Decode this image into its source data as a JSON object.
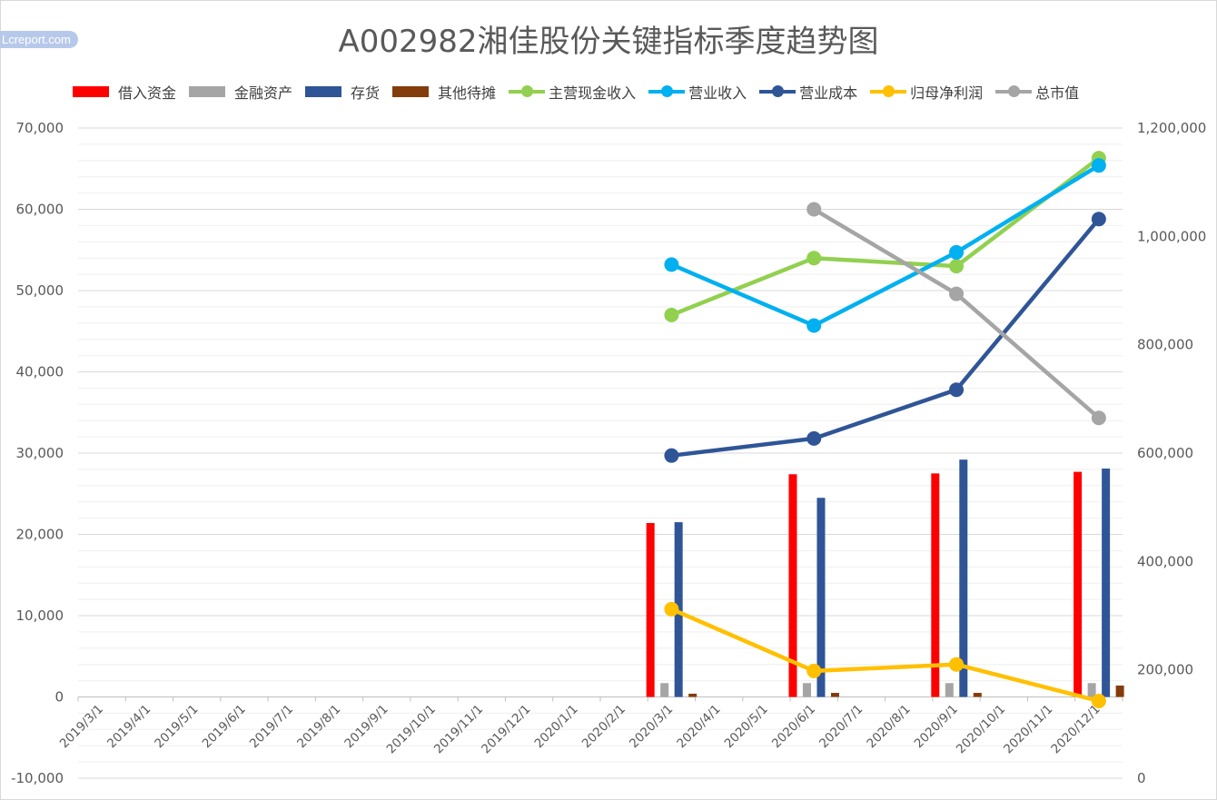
{
  "watermark": "Lcreport.com",
  "chart_data": {
    "type": "bar+line",
    "title": "A002982湘佳股份关键指标季度趋势图",
    "legend_position": "top",
    "grid": true,
    "categories": [
      "2019/3/1",
      "2019/4/1",
      "2019/5/1",
      "2019/6/1",
      "2019/7/1",
      "2019/8/1",
      "2019/9/1",
      "2019/10/1",
      "2019/11/1",
      "2019/12/1",
      "2020/1/1",
      "2020/2/1",
      "2020/3/1",
      "2020/4/1",
      "2020/5/1",
      "2020/6/1",
      "2020/7/1",
      "2020/8/1",
      "2020/9/1",
      "2020/10/1",
      "2020/11/1",
      "2020/12/1"
    ],
    "y_left": {
      "min": -10000,
      "max": 70000,
      "step": 10000,
      "tick_labels": [
        "-10,000",
        "0",
        "10,000",
        "20,000",
        "30,000",
        "40,000",
        "50,000",
        "60,000",
        "70,000"
      ]
    },
    "y_right": {
      "min": 0,
      "max": 1200000,
      "step": 200000,
      "tick_labels": [
        "0",
        "200,000",
        "400,000",
        "600,000",
        "800,000",
        "1,000,000",
        "1,200,000"
      ]
    },
    "series": [
      {
        "name": "借入资金",
        "kind": "bar",
        "axis": "left",
        "color": "#ff0000",
        "values": [
          null,
          null,
          null,
          null,
          null,
          null,
          null,
          null,
          null,
          null,
          null,
          null,
          21400,
          null,
          null,
          27400,
          null,
          null,
          27500,
          null,
          null,
          27700
        ]
      },
      {
        "name": "金融资产",
        "kind": "bar",
        "axis": "left",
        "color": "#a5a5a5",
        "values": [
          null,
          null,
          null,
          null,
          null,
          null,
          null,
          null,
          null,
          null,
          null,
          null,
          1700,
          null,
          null,
          1700,
          null,
          null,
          1700,
          null,
          null,
          1700
        ]
      },
      {
        "name": "存货",
        "kind": "bar",
        "axis": "left",
        "color": "#2f5597",
        "values": [
          null,
          null,
          null,
          null,
          null,
          null,
          null,
          null,
          null,
          null,
          null,
          null,
          21500,
          null,
          null,
          24500,
          null,
          null,
          29200,
          null,
          null,
          28100
        ]
      },
      {
        "name": "其他待摊",
        "kind": "bar",
        "axis": "left",
        "color": "#843c0c",
        "values": [
          null,
          null,
          null,
          null,
          null,
          null,
          null,
          null,
          null,
          null,
          null,
          null,
          400,
          null,
          null,
          500,
          null,
          null,
          500,
          null,
          null,
          1400
        ]
      },
      {
        "name": "主营现金收入",
        "kind": "line",
        "axis": "left",
        "color": "#92d050",
        "values": [
          null,
          null,
          null,
          null,
          null,
          null,
          null,
          null,
          null,
          null,
          null,
          null,
          47000,
          null,
          null,
          54000,
          null,
          null,
          53000,
          null,
          null,
          66300
        ]
      },
      {
        "name": "营业收入",
        "kind": "line",
        "axis": "left",
        "color": "#00b0f0",
        "values": [
          null,
          null,
          null,
          null,
          null,
          null,
          null,
          null,
          null,
          null,
          null,
          null,
          53200,
          null,
          null,
          45700,
          null,
          null,
          54700,
          null,
          null,
          65400
        ]
      },
      {
        "name": "营业成本",
        "kind": "line",
        "axis": "left",
        "color": "#2f5597",
        "values": [
          null,
          null,
          null,
          null,
          null,
          null,
          null,
          null,
          null,
          null,
          null,
          null,
          29700,
          null,
          null,
          31800,
          null,
          null,
          37800,
          null,
          null,
          58800
        ]
      },
      {
        "name": "归母净利润",
        "kind": "line",
        "axis": "left",
        "color": "#ffc000",
        "values": [
          null,
          null,
          null,
          null,
          null,
          null,
          null,
          null,
          null,
          null,
          null,
          null,
          10800,
          null,
          null,
          3200,
          null,
          null,
          4000,
          null,
          null,
          -500
        ]
      },
      {
        "name": "总市值",
        "kind": "line",
        "axis": "right",
        "color": "#a5a5a5",
        "values": [
          null,
          null,
          null,
          null,
          null,
          null,
          null,
          null,
          null,
          null,
          null,
          null,
          null,
          null,
          null,
          1050000,
          null,
          null,
          894000,
          null,
          null,
          665000
        ]
      }
    ]
  }
}
